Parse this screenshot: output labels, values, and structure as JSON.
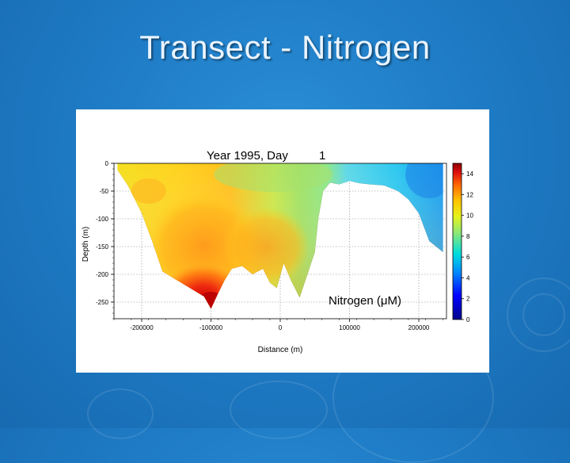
{
  "slide": {
    "title": "Transect - Nitrogen"
  },
  "chart_data": {
    "type": "heatmap",
    "title": "Year 1995, Day",
    "day_value": "1",
    "annotation": "Nitrogen (μM)",
    "xlabel": "Distance (m)",
    "ylabel": "Depth (m)",
    "xlim": [
      -240000,
      240000
    ],
    "ylim": [
      -280,
      0
    ],
    "x_ticks": [
      -200000,
      -100000,
      0,
      100000,
      200000
    ],
    "x_tick_labels": [
      "-200000",
      "-100000",
      "0",
      "100000",
      "200000"
    ],
    "y_ticks": [
      0,
      -50,
      -100,
      -150,
      -200,
      -250
    ],
    "y_tick_labels": [
      "0",
      "-50",
      "-100",
      "-150",
      "-200",
      "-250"
    ],
    "colorbar": {
      "min": 0,
      "max": 15,
      "ticks": [
        0,
        2,
        4,
        6,
        8,
        10,
        12,
        14
      ],
      "tick_labels": [
        "0",
        "2",
        "4",
        "6",
        "8",
        "10",
        "12",
        "14"
      ]
    },
    "grid": true,
    "bottom_profile": [
      [
        -235000,
        -12
      ],
      [
        -220000,
        -40
      ],
      [
        -200000,
        -90
      ],
      [
        -185000,
        -140
      ],
      [
        -170000,
        -195
      ],
      [
        -150000,
        -210
      ],
      [
        -130000,
        -225
      ],
      [
        -110000,
        -240
      ],
      [
        -100000,
        -262
      ],
      [
        -90000,
        -235
      ],
      [
        -80000,
        -210
      ],
      [
        -70000,
        -190
      ],
      [
        -55000,
        -185
      ],
      [
        -40000,
        -200
      ],
      [
        -25000,
        -190
      ],
      [
        -15000,
        -215
      ],
      [
        -5000,
        -225
      ],
      [
        5000,
        -180
      ],
      [
        15000,
        -210
      ],
      [
        28000,
        -242
      ],
      [
        38000,
        -205
      ],
      [
        50000,
        -160
      ],
      [
        55000,
        -100
      ],
      [
        62000,
        -50
      ],
      [
        72000,
        -35
      ],
      [
        85000,
        -38
      ],
      [
        100000,
        -32
      ],
      [
        115000,
        -36
      ],
      [
        130000,
        -38
      ],
      [
        150000,
        -40
      ],
      [
        170000,
        -50
      ],
      [
        185000,
        -65
      ],
      [
        200000,
        -90
      ],
      [
        215000,
        -140
      ],
      [
        225000,
        -150
      ],
      [
        235000,
        -160
      ]
    ],
    "nitrogen_field": [
      {
        "x_range": [
          -240000,
          -150000
        ],
        "value": 9
      },
      {
        "x_range": [
          -150000,
          -60000
        ],
        "value": 11
      },
      {
        "x_range": [
          -60000,
          50000
        ],
        "value": 8
      },
      {
        "x_range": [
          50000,
          240000
        ],
        "value": 4
      }
    ],
    "max_region": {
      "x": -100000,
      "depth": -240,
      "value": 14
    },
    "surface_band_value": 7
  }
}
